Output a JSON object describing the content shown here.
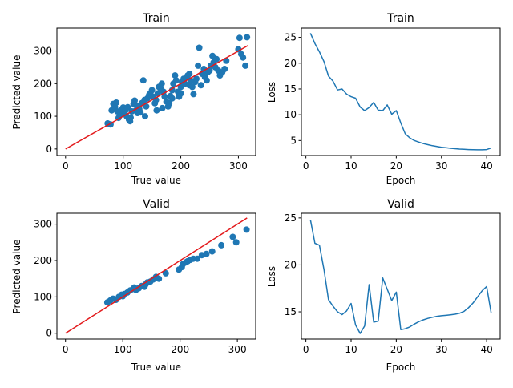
{
  "chart_data": [
    {
      "type": "scatter",
      "title": "Train",
      "xlabel": "True value",
      "ylabel": "Predicted value",
      "xlim": [
        -15,
        330
      ],
      "ylim": [
        -20,
        370
      ],
      "xticks": [
        0,
        100,
        200,
        300
      ],
      "yticks": [
        0,
        100,
        200,
        300
      ],
      "colors": {
        "points": "#1f77b4",
        "line": "#e31a1c"
      },
      "reference_line": {
        "x": [
          0,
          317
        ],
        "y": [
          0,
          317
        ]
      },
      "points": [
        [
          73,
          78
        ],
        [
          78,
          75
        ],
        [
          80,
          118
        ],
        [
          83,
          138
        ],
        [
          86,
          128
        ],
        [
          88,
          142
        ],
        [
          90,
          115
        ],
        [
          92,
          95
        ],
        [
          95,
          105
        ],
        [
          97,
          120
        ],
        [
          100,
          127
        ],
        [
          102,
          110
        ],
        [
          104,
          118
        ],
        [
          106,
          100
        ],
        [
          108,
          128
        ],
        [
          110,
          90
        ],
        [
          112,
          85
        ],
        [
          113,
          96
        ],
        [
          115,
          115
        ],
        [
          118,
          138
        ],
        [
          120,
          148
        ],
        [
          122,
          118
        ],
        [
          125,
          130
        ],
        [
          128,
          122
        ],
        [
          130,
          112
        ],
        [
          132,
          140
        ],
        [
          135,
          210
        ],
        [
          137,
          150
        ],
        [
          140,
          130
        ],
        [
          142,
          155
        ],
        [
          145,
          165
        ],
        [
          147,
          170
        ],
        [
          150,
          180
        ],
        [
          152,
          160
        ],
        [
          155,
          140
        ],
        [
          157,
          150
        ],
        [
          160,
          170
        ],
        [
          162,
          190
        ],
        [
          165,
          185
        ],
        [
          167,
          200
        ],
        [
          170,
          175
        ],
        [
          172,
          160
        ],
        [
          175,
          145
        ],
        [
          178,
          130
        ],
        [
          180,
          140
        ],
        [
          182,
          162
        ],
        [
          185,
          180
        ],
        [
          187,
          200
        ],
        [
          190,
          225
        ],
        [
          192,
          210
        ],
        [
          195,
          175
        ],
        [
          197,
          160
        ],
        [
          200,
          190
        ],
        [
          202,
          205
        ],
        [
          205,
          215
        ],
        [
          207,
          200
        ],
        [
          210,
          220
        ],
        [
          212,
          225
        ],
        [
          215,
          195
        ],
        [
          217,
          210
        ],
        [
          220,
          190
        ],
        [
          222,
          168
        ],
        [
          225,
          205
        ],
        [
          227,
          215
        ],
        [
          230,
          255
        ],
        [
          232,
          310
        ],
        [
          235,
          195
        ],
        [
          237,
          230
        ],
        [
          240,
          245
        ],
        [
          242,
          220
        ],
        [
          245,
          210
        ],
        [
          247,
          235
        ],
        [
          250,
          240
        ],
        [
          252,
          255
        ],
        [
          255,
          285
        ],
        [
          257,
          265
        ],
        [
          260,
          250
        ],
        [
          262,
          275
        ],
        [
          265,
          240
        ],
        [
          268,
          225
        ],
        [
          272,
          235
        ],
        [
          276,
          245
        ],
        [
          279,
          270
        ],
        [
          300,
          305
        ],
        [
          302,
          340
        ],
        [
          305,
          290
        ],
        [
          308,
          280
        ],
        [
          312,
          255
        ],
        [
          315,
          342
        ],
        [
          138,
          100
        ],
        [
          158,
          118
        ],
        [
          168,
          125
        ],
        [
          185,
          155
        ],
        [
          200,
          170
        ],
        [
          215,
          230
        ],
        [
          125,
          110
        ]
      ]
    },
    {
      "type": "line",
      "title": "Train",
      "xlabel": "Epoch",
      "ylabel": "Loss",
      "xlim": [
        -1,
        43
      ],
      "ylim": [
        2.1,
        26.8
      ],
      "xticks": [
        0,
        10,
        20,
        30,
        40
      ],
      "yticks": [
        5,
        10,
        15,
        20,
        25
      ],
      "colors": {
        "line": "#1f77b4"
      },
      "x": [
        1,
        2,
        3,
        4,
        5,
        6,
        7,
        8,
        9,
        10,
        11,
        12,
        13,
        14,
        15,
        16,
        17,
        18,
        19,
        20,
        21,
        22,
        23,
        24,
        25,
        26,
        27,
        28,
        29,
        30,
        31,
        32,
        33,
        34,
        35,
        36,
        37,
        38,
        39,
        40,
        41
      ],
      "y": [
        25.8,
        23.8,
        22.2,
        20.3,
        17.5,
        16.5,
        14.8,
        15.0,
        14.0,
        13.5,
        13.2,
        11.5,
        10.8,
        11.4,
        12.4,
        10.9,
        10.8,
        11.9,
        10.1,
        10.8,
        8.4,
        6.3,
        5.5,
        5.0,
        4.7,
        4.4,
        4.2,
        4.0,
        3.85,
        3.7,
        3.6,
        3.5,
        3.42,
        3.35,
        3.3,
        3.25,
        3.22,
        3.2,
        3.2,
        3.25,
        3.55
      ]
    },
    {
      "type": "scatter",
      "title": "Valid",
      "xlabel": "True value",
      "ylabel": "Predicted value",
      "xlim": [
        -15,
        332
      ],
      "ylim": [
        -16,
        330
      ],
      "xticks": [
        0,
        100,
        200,
        300
      ],
      "yticks": [
        0,
        100,
        200,
        300
      ],
      "colors": {
        "points": "#1f77b4",
        "line": "#e31a1c"
      },
      "reference_line": {
        "x": [
          0,
          317
        ],
        "y": [
          0,
          317
        ]
      },
      "points": [
        [
          73,
          85
        ],
        [
          78,
          90
        ],
        [
          83,
          95
        ],
        [
          88,
          92
        ],
        [
          93,
          100
        ],
        [
          98,
          106
        ],
        [
          103,
          108
        ],
        [
          108,
          112
        ],
        [
          113,
          118
        ],
        [
          118,
          122
        ],
        [
          123,
          119
        ],
        [
          128,
          124
        ],
        [
          133,
          130
        ],
        [
          138,
          128
        ],
        [
          143,
          140
        ],
        [
          148,
          142
        ],
        [
          153,
          148
        ],
        [
          158,
          155
        ],
        [
          163,
          150
        ],
        [
          175,
          165
        ],
        [
          198,
          175
        ],
        [
          203,
          182
        ],
        [
          205,
          190
        ],
        [
          210,
          195
        ],
        [
          213,
          198
        ],
        [
          218,
          202
        ],
        [
          223,
          205
        ],
        [
          230,
          205
        ],
        [
          238,
          215
        ],
        [
          246,
          218
        ],
        [
          256,
          225
        ],
        [
          272,
          242
        ],
        [
          292,
          265
        ],
        [
          298,
          250
        ],
        [
          316,
          285
        ],
        [
          100,
          102
        ],
        [
          120,
          126
        ],
        [
          140,
          135
        ]
      ]
    },
    {
      "type": "line",
      "title": "Valid",
      "xlabel": "Epoch",
      "ylabel": "Loss",
      "xlim": [
        -1,
        43
      ],
      "ylim": [
        12.1,
        25.5
      ],
      "xticks": [
        0,
        10,
        20,
        30,
        40
      ],
      "yticks": [
        15,
        20,
        25
      ],
      "colors": {
        "line": "#1f77b4"
      },
      "x": [
        1,
        2,
        3,
        4,
        5,
        6,
        7,
        8,
        9,
        10,
        11,
        12,
        13,
        14,
        15,
        16,
        17,
        18,
        19,
        20,
        21,
        22,
        23,
        24,
        25,
        26,
        27,
        28,
        29,
        30,
        31,
        32,
        33,
        34,
        35,
        36,
        37,
        38,
        39,
        40,
        41
      ],
      "y": [
        24.8,
        22.3,
        22.1,
        19.5,
        16.3,
        15.6,
        15.0,
        14.7,
        15.1,
        15.9,
        13.6,
        12.7,
        13.5,
        17.9,
        13.9,
        14.0,
        18.6,
        17.4,
        16.2,
        17.1,
        13.1,
        13.2,
        13.4,
        13.7,
        13.95,
        14.15,
        14.3,
        14.42,
        14.52,
        14.58,
        14.63,
        14.68,
        14.75,
        14.85,
        15.05,
        15.45,
        15.95,
        16.6,
        17.25,
        17.7,
        14.9
      ]
    }
  ]
}
